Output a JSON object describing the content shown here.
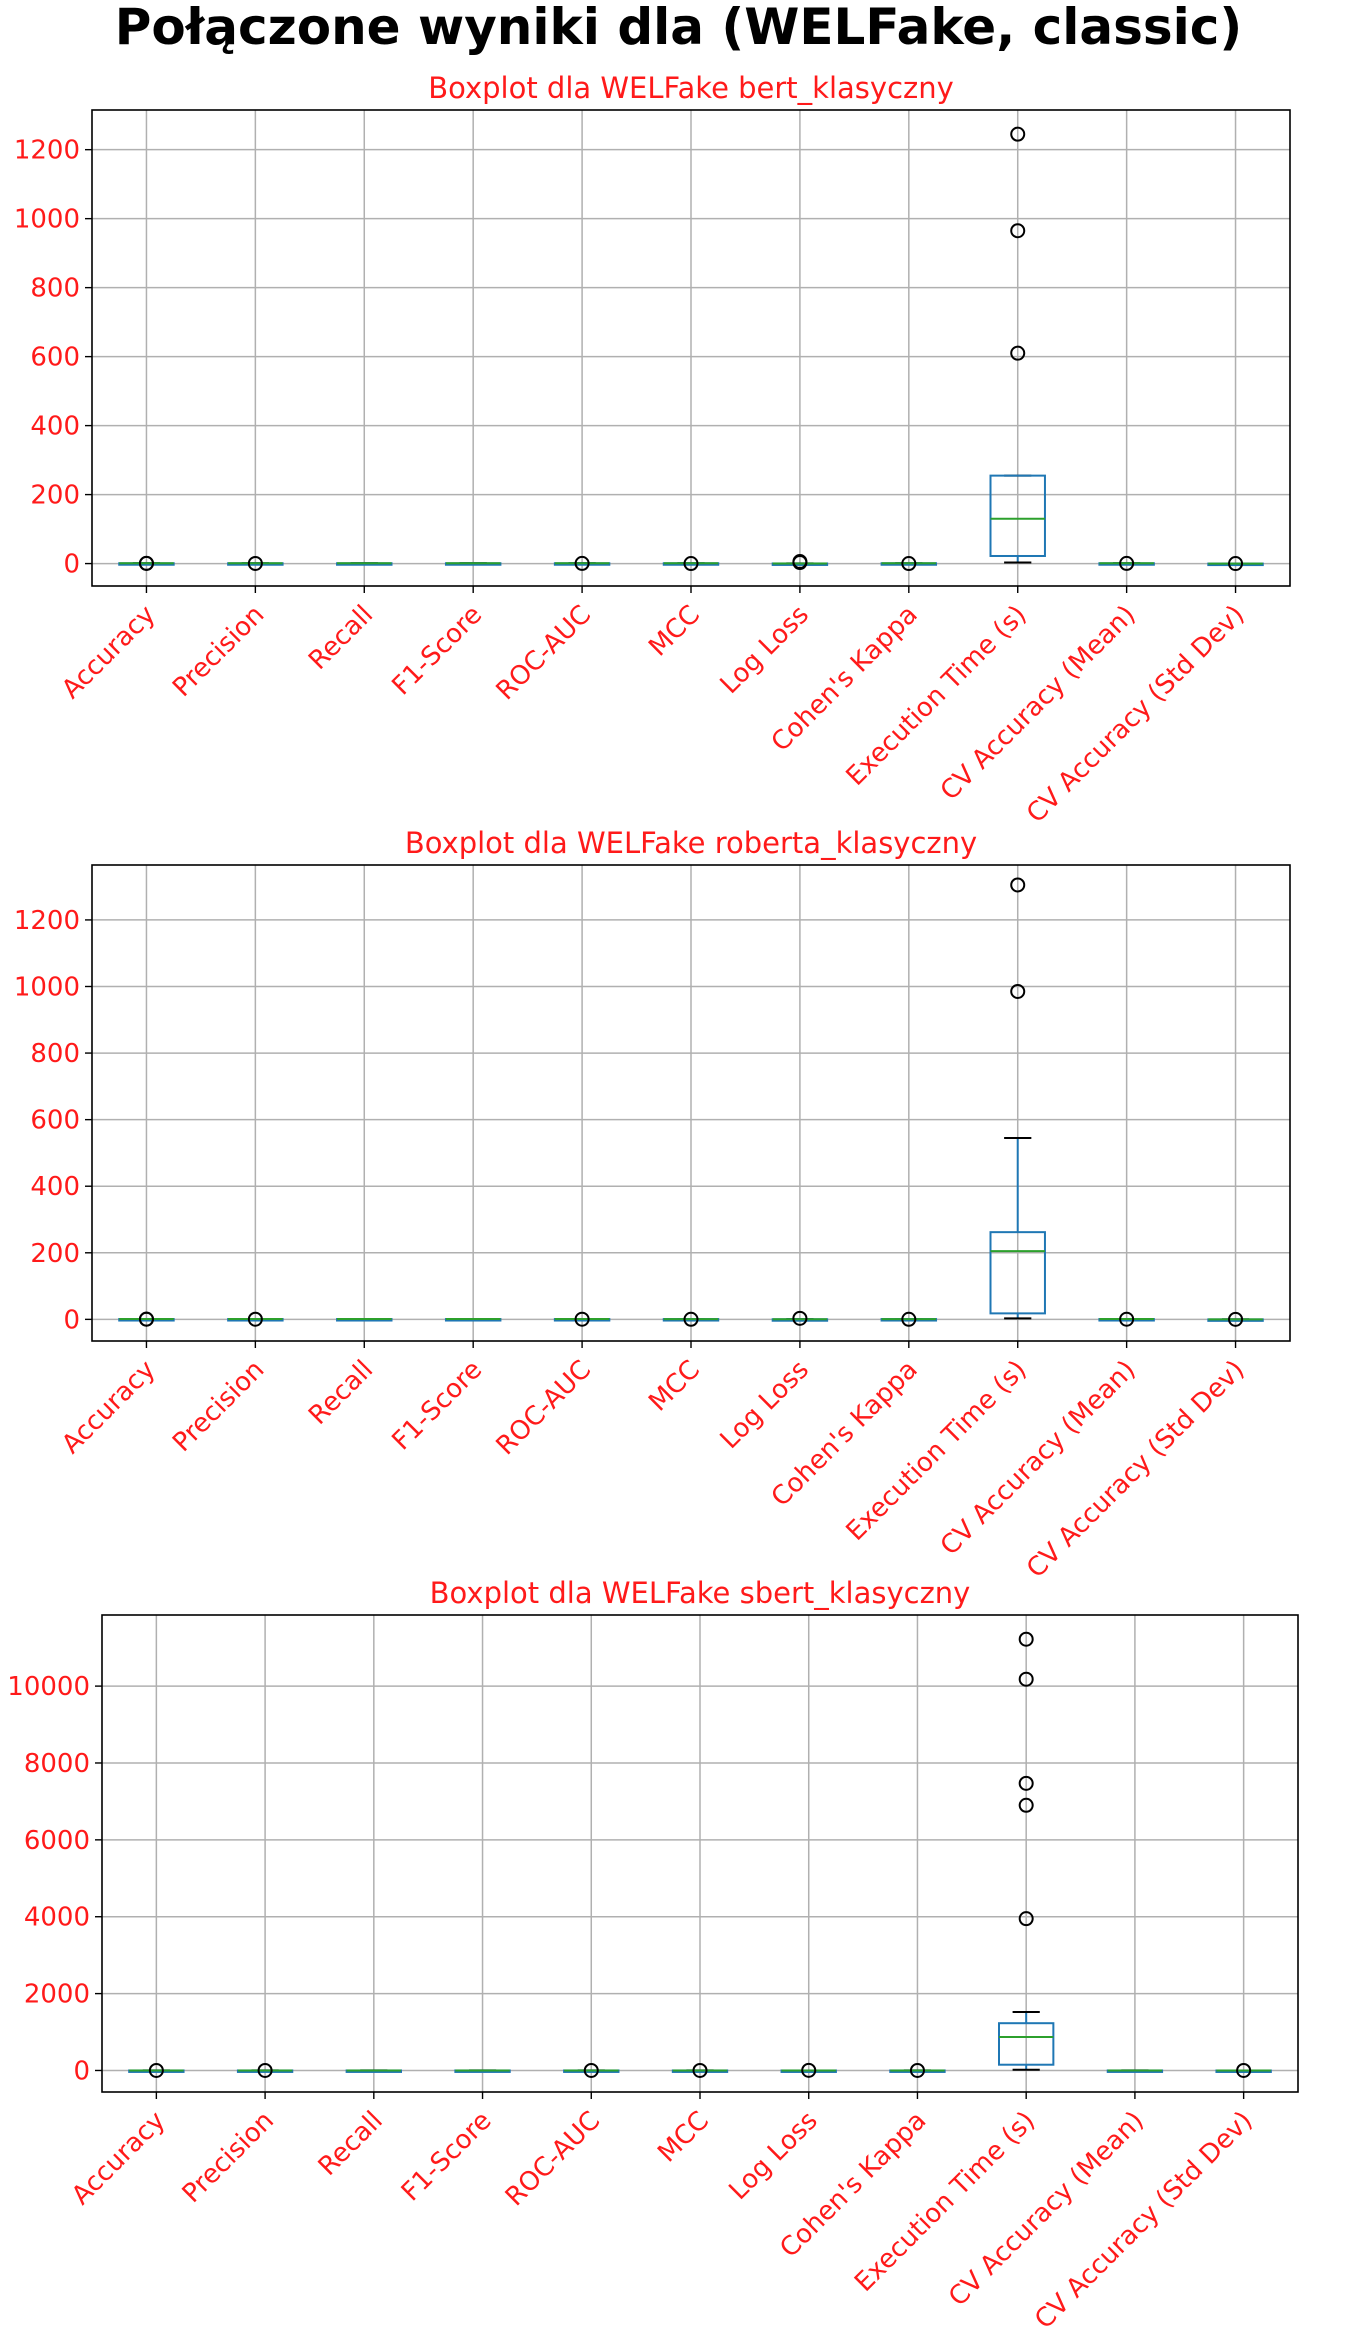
{
  "suptitle": "Połączone wyniki dla (WELFake, classic)",
  "colors": {
    "label_text": "#ff1a1a",
    "box": "#1f77b4",
    "median": "#2ca02c",
    "grid": "#b0b0b0",
    "flier": "#000000"
  },
  "chart_data": [
    {
      "type": "box",
      "title": "Boxplot dla WELFake bert_klasyczny",
      "grid": true,
      "categories": [
        "Accuracy",
        "Precision",
        "Recall",
        "F1-Score",
        "ROC-AUC",
        "MCC",
        "Log Loss",
        "Cohen's Kappa",
        "Execution Time (s)",
        "CV Accuracy (Mean)",
        "CV Accuracy (Std Dev)"
      ],
      "ylim": [
        -65,
        1315
      ],
      "yticks": [
        0,
        200,
        400,
        600,
        800,
        1000,
        1200
      ],
      "boxes": [
        {
          "q1": 0.9,
          "median": 0.95,
          "q3": 0.98,
          "whislo": 0.85,
          "whishi": 1.0,
          "fliers": [
            0.5,
            0.7
          ]
        },
        {
          "q1": 0.9,
          "median": 0.95,
          "q3": 0.98,
          "whislo": 0.85,
          "whishi": 1.0,
          "fliers": [
            0.4
          ]
        },
        {
          "q1": 0.9,
          "median": 0.95,
          "q3": 0.98,
          "whislo": 0.85,
          "whishi": 1.0,
          "fliers": []
        },
        {
          "q1": 0.9,
          "median": 0.95,
          "q3": 0.98,
          "whislo": 0.85,
          "whishi": 1.0,
          "fliers": []
        },
        {
          "q1": 0.9,
          "median": 0.95,
          "q3": 0.98,
          "whislo": 0.85,
          "whishi": 1.0,
          "fliers": [
            0.5
          ]
        },
        {
          "q1": 0.8,
          "median": 0.9,
          "q3": 0.95,
          "whislo": 0.7,
          "whishi": 1.0,
          "fliers": [
            0.2
          ]
        },
        {
          "q1": 0.1,
          "median": 0.2,
          "q3": 0.4,
          "whislo": 0.05,
          "whishi": 0.6,
          "fliers": [
            3,
            6
          ]
        },
        {
          "q1": 0.8,
          "median": 0.9,
          "q3": 0.95,
          "whislo": 0.7,
          "whishi": 1.0,
          "fliers": [
            0.2
          ]
        },
        {
          "q1": 22,
          "median": 130,
          "q3": 255,
          "whislo": 3,
          "whishi": 255,
          "fliers": [
            610,
            965,
            1245
          ]
        },
        {
          "q1": 0.9,
          "median": 0.95,
          "q3": 0.98,
          "whislo": 0.85,
          "whishi": 1.0,
          "fliers": [
            0.5
          ]
        },
        {
          "q1": 0.005,
          "median": 0.01,
          "q3": 0.02,
          "whislo": 0.0,
          "whishi": 0.03,
          "fliers": [
            0.06
          ]
        }
      ]
    },
    {
      "type": "box",
      "title": "Boxplot dla WELFake roberta_klasyczny",
      "grid": true,
      "categories": [
        "Accuracy",
        "Precision",
        "Recall",
        "F1-Score",
        "ROC-AUC",
        "MCC",
        "Log Loss",
        "Cohen's Kappa",
        "Execution Time (s)",
        "CV Accuracy (Mean)",
        "CV Accuracy (Std Dev)"
      ],
      "ylim": [
        -65,
        1365
      ],
      "yticks": [
        0,
        200,
        400,
        600,
        800,
        1000,
        1200
      ],
      "boxes": [
        {
          "q1": 0.9,
          "median": 0.95,
          "q3": 0.98,
          "whislo": 0.85,
          "whishi": 1.0,
          "fliers": [
            0.5,
            0.7
          ]
        },
        {
          "q1": 0.9,
          "median": 0.95,
          "q3": 0.98,
          "whislo": 0.85,
          "whishi": 1.0,
          "fliers": [
            0.4
          ]
        },
        {
          "q1": 0.9,
          "median": 0.95,
          "q3": 0.98,
          "whislo": 0.85,
          "whishi": 1.0,
          "fliers": []
        },
        {
          "q1": 0.9,
          "median": 0.95,
          "q3": 0.98,
          "whislo": 0.85,
          "whishi": 1.0,
          "fliers": []
        },
        {
          "q1": 0.9,
          "median": 0.95,
          "q3": 0.98,
          "whislo": 0.85,
          "whishi": 1.0,
          "fliers": [
            0.5
          ]
        },
        {
          "q1": 0.8,
          "median": 0.9,
          "q3": 0.95,
          "whislo": 0.7,
          "whishi": 1.0,
          "fliers": [
            0.2
          ]
        },
        {
          "q1": 0.1,
          "median": 0.2,
          "q3": 0.4,
          "whislo": 0.05,
          "whishi": 0.6,
          "fliers": [
            3
          ]
        },
        {
          "q1": 0.8,
          "median": 0.9,
          "q3": 0.95,
          "whislo": 0.7,
          "whishi": 1.0,
          "fliers": [
            0.2
          ]
        },
        {
          "q1": 18,
          "median": 205,
          "q3": 262,
          "whislo": 3,
          "whishi": 545,
          "fliers": [
            985,
            1305
          ]
        },
        {
          "q1": 0.9,
          "median": 0.95,
          "q3": 0.98,
          "whislo": 0.85,
          "whishi": 1.0,
          "fliers": [
            0.5
          ]
        },
        {
          "q1": 0.005,
          "median": 0.01,
          "q3": 0.02,
          "whislo": 0.0,
          "whishi": 0.03,
          "fliers": [
            0.06
          ]
        }
      ]
    },
    {
      "type": "box",
      "title": "Boxplot dla WELFake sbert_klasyczny",
      "grid": true,
      "categories": [
        "Accuracy",
        "Precision",
        "Recall",
        "F1-Score",
        "ROC-AUC",
        "MCC",
        "Log Loss",
        "Cohen's Kappa",
        "Execution Time (s)",
        "CV Accuracy (Mean)",
        "CV Accuracy (Std Dev)"
      ],
      "ylim": [
        -560,
        11850
      ],
      "yticks": [
        0,
        2000,
        4000,
        6000,
        8000,
        10000
      ],
      "boxes": [
        {
          "q1": 0.9,
          "median": 0.95,
          "q3": 0.98,
          "whislo": 0.85,
          "whishi": 1.0,
          "fliers": [
            0.5
          ]
        },
        {
          "q1": 0.9,
          "median": 0.95,
          "q3": 0.98,
          "whislo": 0.85,
          "whishi": 1.0,
          "fliers": [
            0.4
          ]
        },
        {
          "q1": 0.9,
          "median": 0.95,
          "q3": 0.98,
          "whislo": 0.85,
          "whishi": 1.0,
          "fliers": []
        },
        {
          "q1": 0.9,
          "median": 0.95,
          "q3": 0.98,
          "whislo": 0.85,
          "whishi": 1.0,
          "fliers": []
        },
        {
          "q1": 0.9,
          "median": 0.95,
          "q3": 0.98,
          "whislo": 0.85,
          "whishi": 1.0,
          "fliers": [
            0.5
          ]
        },
        {
          "q1": 0.8,
          "median": 0.9,
          "q3": 0.95,
          "whislo": 0.7,
          "whishi": 1.0,
          "fliers": [
            0.2
          ]
        },
        {
          "q1": 0.1,
          "median": 0.2,
          "q3": 0.4,
          "whislo": 0.05,
          "whishi": 0.6,
          "fliers": [
            3
          ]
        },
        {
          "q1": 0.8,
          "median": 0.9,
          "q3": 0.95,
          "whislo": 0.7,
          "whishi": 1.0,
          "fliers": [
            0.2
          ]
        },
        {
          "q1": 150,
          "median": 870,
          "q3": 1230,
          "whislo": 20,
          "whishi": 1520,
          "fliers": [
            3950,
            6900,
            7470,
            10180,
            11220
          ]
        },
        {
          "q1": 0.9,
          "median": 0.95,
          "q3": 0.98,
          "whislo": 0.85,
          "whishi": 1.0,
          "fliers": []
        },
        {
          "q1": 0.005,
          "median": 0.01,
          "q3": 0.02,
          "whislo": 0.0,
          "whishi": 0.03,
          "fliers": [
            0.06
          ]
        }
      ]
    }
  ]
}
